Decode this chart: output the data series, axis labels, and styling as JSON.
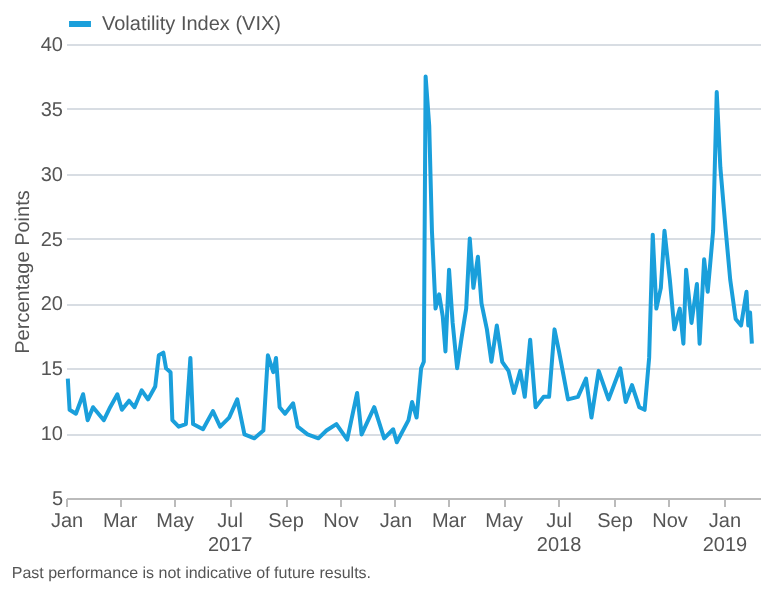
{
  "chart_data": {
    "type": "line",
    "ylabel": "Percentage Points",
    "annotations": [
      "Past performance is not indicative of future results."
    ],
    "legend": "top left",
    "grid": "y",
    "marker": "none",
    "line_style": "solid",
    "xlim": [
      "2017-01-01",
      "2019-02-10"
    ],
    "xticks": [
      {
        "value": "2017-01-01",
        "label": "Jan"
      },
      {
        "value": "2017-03-01",
        "label": "Mar"
      },
      {
        "value": "2017-05-01",
        "label": "May"
      },
      {
        "value": "2017-07-01",
        "label": "Jul 2017"
      },
      {
        "value": "2017-09-01",
        "label": "Sep"
      },
      {
        "value": "2017-11-01",
        "label": "Nov"
      },
      {
        "value": "2018-01-01",
        "label": "Jan"
      },
      {
        "value": "2018-03-01",
        "label": "Mar"
      },
      {
        "value": "2018-05-01",
        "label": "May"
      },
      {
        "value": "2018-07-01",
        "label": "Jul 2018"
      },
      {
        "value": "2018-09-01",
        "label": "Sep"
      },
      {
        "value": "2018-11-01",
        "label": "Nov"
      },
      {
        "value": "2019-01-01",
        "label": "Jan 2019"
      }
    ],
    "ylim": [
      5,
      40
    ],
    "yticks": [
      5,
      10,
      15,
      20,
      25,
      30,
      35,
      40
    ],
    "x": [
      "2017-01-03",
      "2017-01-05",
      "2017-01-12",
      "2017-01-20",
      "2017-01-25",
      "2017-01-31",
      "2017-02-12",
      "2017-02-19",
      "2017-02-27",
      "2017-03-04",
      "2017-03-12",
      "2017-03-18",
      "2017-03-26",
      "2017-04-02",
      "2017-04-10",
      "2017-04-14",
      "2017-04-19",
      "2017-04-22",
      "2017-04-27",
      "2017-04-29",
      "2017-05-06",
      "2017-05-14",
      "2017-05-19",
      "2017-05-22",
      "2017-06-02",
      "2017-06-13",
      "2017-06-21",
      "2017-07-01",
      "2017-07-10",
      "2017-07-18",
      "2017-07-29",
      "2017-08-08",
      "2017-08-13",
      "2017-08-19",
      "2017-08-22",
      "2017-08-26",
      "2017-09-01",
      "2017-09-10",
      "2017-09-15",
      "2017-09-26",
      "2017-10-08",
      "2017-10-17",
      "2017-10-28",
      "2017-11-09",
      "2017-11-20",
      "2017-11-25",
      "2017-12-09",
      "2017-12-20",
      "2017-12-30",
      "2018-01-03",
      "2018-01-16",
      "2018-01-20",
      "2018-01-25",
      "2018-01-30",
      "2018-02-02",
      "2018-02-04",
      "2018-02-08",
      "2018-02-11",
      "2018-02-15",
      "2018-02-19",
      "2018-02-23",
      "2018-02-26",
      "2018-03-02",
      "2018-03-06",
      "2018-03-11",
      "2018-03-16",
      "2018-03-21",
      "2018-03-25",
      "2018-03-29",
      "2018-04-03",
      "2018-04-07",
      "2018-04-13",
      "2018-04-18",
      "2018-04-24",
      "2018-04-30",
      "2018-05-07",
      "2018-05-13",
      "2018-05-20",
      "2018-05-25",
      "2018-05-31",
      "2018-06-06",
      "2018-06-15",
      "2018-06-21",
      "2018-06-27",
      "2018-07-02",
      "2018-07-12",
      "2018-07-23",
      "2018-08-01",
      "2018-08-07",
      "2018-08-15",
      "2018-08-26",
      "2018-09-08",
      "2018-09-14",
      "2018-09-21",
      "2018-09-29",
      "2018-10-05",
      "2018-10-10",
      "2018-10-14",
      "2018-10-18",
      "2018-10-23",
      "2018-10-27",
      "2018-11-02",
      "2018-11-07",
      "2018-11-13",
      "2018-11-17",
      "2018-11-20",
      "2018-11-26",
      "2018-12-02",
      "2018-12-05",
      "2018-12-10",
      "2018-12-14",
      "2018-12-20",
      "2018-12-24",
      "2018-12-28",
      "2019-01-03",
      "2019-01-08",
      "2019-01-14",
      "2019-01-20",
      "2019-01-26",
      "2019-01-28",
      "2019-01-30",
      "2019-02-01"
    ],
    "series": [
      {
        "name": "Volatility Index (VIX)",
        "color": "#1a9fdb",
        "values": [
          14.2,
          11.8,
          11.5,
          13,
          11,
          12,
          11,
          12,
          13,
          11.8,
          12.5,
          12,
          13.3,
          12.6,
          13.6,
          16,
          16.2,
          15,
          14.7,
          11,
          10.5,
          10.7,
          15.8,
          10.7,
          10.3,
          11.7,
          10.5,
          11.2,
          12.6,
          9.9,
          9.6,
          10.2,
          16,
          14.7,
          15.8,
          12,
          11.5,
          12.3,
          10.5,
          9.9,
          9.6,
          10.2,
          10.7,
          9.5,
          13.1,
          9.9,
          12,
          9.6,
          10.3,
          9.3,
          11,
          12.4,
          11.2,
          15,
          15.5,
          37.5,
          33.7,
          25.6,
          19.6,
          20.7,
          19,
          16.3,
          22.6,
          18.5,
          15,
          17.4,
          19.6,
          25,
          21.2,
          23.6,
          20,
          18,
          15.5,
          18.3,
          15.5,
          14.8,
          13.1,
          14.8,
          12.8,
          17.2,
          12,
          12.8,
          12.8,
          18,
          16.3,
          12.6,
          12.8,
          14.2,
          11.2,
          14.8,
          12.6,
          15,
          12.4,
          13.7,
          12,
          11.8,
          15.8,
          25.3,
          19.6,
          21.2,
          25.6,
          21.8,
          18,
          19.6,
          16.9,
          22.6,
          18.5,
          21.5,
          16.9,
          23.4,
          20.9,
          25.6,
          36.3,
          30.5,
          25.6,
          21.8,
          18.8,
          18.3,
          20.9,
          18.3,
          19.3,
          16.9
        ]
      }
    ]
  }
}
